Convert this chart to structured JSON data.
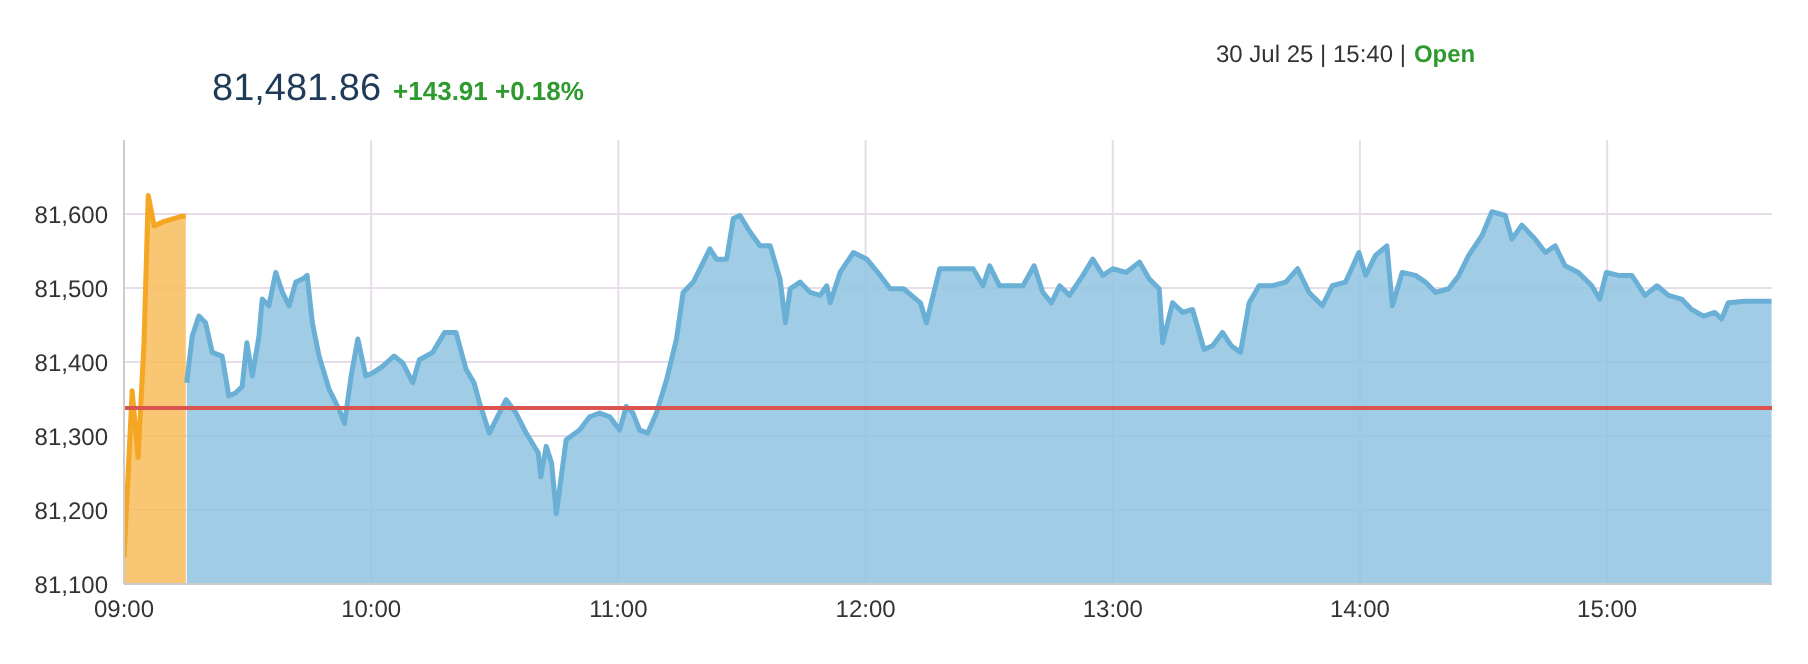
{
  "chart_data": {
    "type": "area",
    "title": "81,481.86",
    "subtitle": "+143.91 +0.18%",
    "annotations": [
      "30 Jul 25 | 15:40 |",
      "Open"
    ],
    "xlim": [
      9,
      15.667
    ],
    "xticks": [
      {
        "value": 9,
        "label": "09:00"
      },
      {
        "value": 10,
        "label": "10:00"
      },
      {
        "value": 11,
        "label": "11:00"
      },
      {
        "value": 12,
        "label": "12:00"
      },
      {
        "value": 13,
        "label": "13:00"
      },
      {
        "value": 14,
        "label": "14:00"
      },
      {
        "value": 15,
        "label": "15:00"
      }
    ],
    "ylim": [
      81100,
      81700
    ],
    "yticks": [
      {
        "value": 81100,
        "label": "81,100"
      },
      {
        "value": 81200,
        "label": "81,200"
      },
      {
        "value": 81300,
        "label": "81,300"
      },
      {
        "value": 81400,
        "label": "81,400"
      },
      {
        "value": 81500,
        "label": "81,500"
      },
      {
        "value": 81600,
        "label": "81,600"
      }
    ],
    "grid": true,
    "ref_lines": [
      {
        "axis": "y",
        "value": 81338,
        "color": "#d9534f"
      }
    ],
    "series": [
      {
        "color": "#f5a623",
        "x": [
          9,
          9.033,
          9.057,
          9.081,
          9.098,
          9.122,
          9.163,
          9.236,
          9.25
        ],
        "values": [
          81135,
          81361,
          81271,
          81426,
          81625,
          81584,
          81590,
          81597,
          81597
        ]
      },
      {
        "color": "#6ab0d6",
        "x": [
          9.254,
          9.276,
          9.303,
          9.33,
          9.357,
          9.397,
          9.424,
          9.451,
          9.478,
          9.497,
          9.519,
          9.546,
          9.559,
          9.586,
          9.614,
          9.641,
          9.668,
          9.695,
          9.722,
          9.741,
          9.762,
          9.789,
          9.83,
          9.87,
          9.892,
          9.919,
          9.946,
          9.978,
          10.005,
          10.046,
          10.092,
          10.127,
          10.168,
          10.195,
          10.249,
          10.297,
          10.343,
          10.384,
          10.416,
          10.438,
          10.478,
          10.505,
          10.546,
          10.586,
          10.627,
          10.676,
          10.686,
          10.708,
          10.73,
          10.749,
          10.789,
          10.843,
          10.884,
          10.924,
          10.965,
          11.005,
          11.032,
          11.059,
          11.086,
          11.119,
          11.154,
          11.195,
          11.235,
          11.262,
          11.303,
          11.33,
          11.37,
          11.397,
          11.438,
          11.465,
          11.492,
          11.532,
          11.573,
          11.614,
          11.654,
          11.676,
          11.695,
          11.735,
          11.776,
          11.816,
          11.843,
          11.857,
          11.897,
          11.951,
          12.005,
          12.059,
          12.1,
          12.154,
          12.222,
          12.246,
          12.3,
          12.341,
          12.435,
          12.475,
          12.502,
          12.542,
          12.596,
          12.637,
          12.682,
          12.717,
          12.752,
          12.785,
          12.825,
          12.879,
          12.919,
          12.96,
          13,
          13.054,
          13.108,
          13.148,
          13.188,
          13.202,
          13.242,
          13.283,
          13.323,
          13.369,
          13.404,
          13.444,
          13.479,
          13.517,
          13.552,
          13.592,
          13.646,
          13.7,
          13.748,
          13.794,
          13.848,
          13.888,
          13.942,
          13.996,
          14.023,
          14.063,
          14.109,
          14.131,
          14.171,
          14.225,
          14.265,
          14.306,
          14.359,
          14.4,
          14.44,
          14.494,
          14.534,
          14.588,
          14.615,
          14.655,
          14.709,
          14.75,
          14.79,
          14.83,
          14.884,
          14.938,
          14.97,
          14.997,
          15.046,
          15.1,
          15.153,
          15.202,
          15.248,
          15.301,
          15.342,
          15.39,
          15.436,
          15.463,
          15.49,
          15.557,
          15.665
        ],
        "values": [
          81372,
          81435,
          81462,
          81453,
          81413,
          81408,
          81354,
          81358,
          81367,
          81426,
          81381,
          81435,
          81485,
          81476,
          81521,
          81494,
          81476,
          81508,
          81512,
          81517,
          81453,
          81408,
          81363,
          81336,
          81317,
          81381,
          81431,
          81381,
          81385,
          81394,
          81408,
          81399,
          81372,
          81403,
          81413,
          81440,
          81440,
          81390,
          81372,
          81345,
          81304,
          81322,
          81349,
          81331,
          81304,
          81277,
          81245,
          81286,
          81263,
          81195,
          81295,
          81308,
          81326,
          81331,
          81326,
          81308,
          81340,
          81331,
          81308,
          81304,
          81331,
          81376,
          81431,
          81494,
          81508,
          81526,
          81553,
          81539,
          81539,
          81594,
          81598,
          81576,
          81557,
          81557,
          81512,
          81453,
          81499,
          81508,
          81494,
          81490,
          81503,
          81480,
          81521,
          81548,
          81539,
          81517,
          81499,
          81499,
          81480,
          81453,
          81526,
          81526,
          81526,
          81503,
          81530,
          81503,
          81503,
          81503,
          81530,
          81494,
          81480,
          81503,
          81490,
          81517,
          81539,
          81517,
          81526,
          81521,
          81535,
          81512,
          81499,
          81426,
          81480,
          81467,
          81471,
          81417,
          81422,
          81440,
          81422,
          81413,
          81480,
          81503,
          81503,
          81508,
          81526,
          81494,
          81476,
          81503,
          81508,
          81548,
          81517,
          81544,
          81557,
          81476,
          81521,
          81517,
          81508,
          81494,
          81499,
          81517,
          81544,
          81571,
          81603,
          81598,
          81566,
          81585,
          81566,
          81548,
          81557,
          81530,
          81521,
          81503,
          81485,
          81521,
          81517,
          81517,
          81490,
          81503,
          81490,
          81485,
          81471,
          81462,
          81467,
          81458,
          81480,
          81482,
          81482
        ]
      }
    ]
  }
}
